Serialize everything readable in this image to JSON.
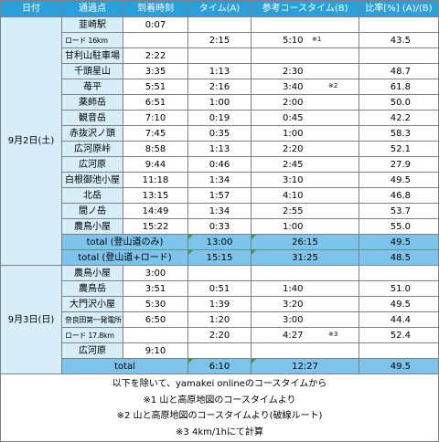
{
  "header": [
    "日付",
    "通過点",
    "到着時刻",
    "タイム(A)",
    "参考コースタイム(B)",
    "比率[%] (A)/(B)"
  ],
  "day1": {
    "date": "9月2日(土)",
    "rows": [
      {
        "point": "韮崎駅",
        "arrival": "0:07",
        "time": "",
        "ref": "",
        "ref_note": "",
        "ratio": ""
      },
      {
        "point": "ロード 16km",
        "arrival": "",
        "time": "2:15",
        "ref": "5:10",
        "ref_note": "※1",
        "ratio": "43.5"
      },
      {
        "point": "甘利山駐車場",
        "arrival": "2:22",
        "time": "",
        "ref": "",
        "ref_note": "",
        "ratio": ""
      },
      {
        "point": "千頭星山",
        "arrival": "3:35",
        "time": "1:13",
        "ref": "2:30",
        "ref_note": "",
        "ratio": "48.7"
      },
      {
        "point": "苺平",
        "arrival": "5:51",
        "time": "2:16",
        "ref": "3:40",
        "ref_note": "※2",
        "ratio": "61.8"
      },
      {
        "point": "薬師岳",
        "arrival": "6:51",
        "time": "1:00",
        "ref": "2:00",
        "ref_note": "",
        "ratio": "50.0"
      },
      {
        "point": "観音岳",
        "arrival": "7:10",
        "time": "0:19",
        "ref": "0:45",
        "ref_note": "",
        "ratio": "42.2"
      },
      {
        "point": "赤抜沢ノ頭",
        "arrival": "7:45",
        "time": "0:35",
        "ref": "1:00",
        "ref_note": "",
        "ratio": "58.3"
      },
      {
        "point": "広河原峠",
        "arrival": "8:58",
        "time": "1:13",
        "ref": "2:20",
        "ref_note": "",
        "ratio": "52.1"
      },
      {
        "point": "広河原",
        "arrival": "9:44",
        "time": "0:46",
        "ref": "2:45",
        "ref_note": "",
        "ratio": "27.9"
      },
      {
        "point": "白根御池小屋",
        "arrival": "11:18",
        "time": "1:34",
        "ref": "3:10",
        "ref_note": "",
        "ratio": "49.5"
      },
      {
        "point": "北岳",
        "arrival": "13:15",
        "time": "1:57",
        "ref": "4:10",
        "ref_note": "",
        "ratio": "46.8"
      },
      {
        "point": "間ノ岳",
        "arrival": "14:49",
        "time": "1:34",
        "ref": "2:55",
        "ref_note": "",
        "ratio": "53.7"
      },
      {
        "point": "農鳥小屋",
        "arrival": "15:22",
        "time": "0:33",
        "ref": "1:00",
        "ref_note": "",
        "ratio": "55.0"
      }
    ],
    "totals": [
      {
        "label": "total (登山道のみ)",
        "time": "13:00",
        "ref": "26:15",
        "ratio": "49.5"
      },
      {
        "label": "total (登山道+ロード)",
        "time": "15:15",
        "ref": "31:25",
        "ratio": "48.5"
      }
    ]
  },
  "day2": {
    "date": "9月3日(日)",
    "rows": [
      {
        "point": "農鳥小屋",
        "arrival": "3:00",
        "time": "",
        "ref": "",
        "ref_note": "",
        "ratio": ""
      },
      {
        "point": "農鳥岳",
        "arrival": "3:51",
        "time": "0:51",
        "ref": "1:40",
        "ref_note": "",
        "ratio": "51.0"
      },
      {
        "point": "大門沢小屋",
        "arrival": "5:30",
        "time": "1:39",
        "ref": "3:20",
        "ref_note": "",
        "ratio": "49.5"
      },
      {
        "point": "奈良田第一発電所",
        "arrival": "6:50",
        "time": "1:20",
        "ref": "3:00",
        "ref_note": "",
        "ratio": "44.4"
      },
      {
        "point": "ロード 17.8km",
        "arrival": "",
        "time": "2:20",
        "ref": "4:27",
        "ref_note": "※3",
        "ratio": "52.4"
      },
      {
        "point": "広河原",
        "arrival": "9:10",
        "time": "",
        "ref": "",
        "ref_note": "",
        "ratio": ""
      }
    ],
    "totals": [
      {
        "label": "total",
        "time": "6:10",
        "ref": "12:27",
        "ratio": "49.5"
      }
    ]
  },
  "notes": [
    "以下を除いて、yamakei onlineのコースタイムから",
    "※1 山と高原地図のコースタイムより",
    "※2 山と高原地図のコースタイムより(破線ルート)",
    "※3 4km/1hにて計算"
  ]
}
